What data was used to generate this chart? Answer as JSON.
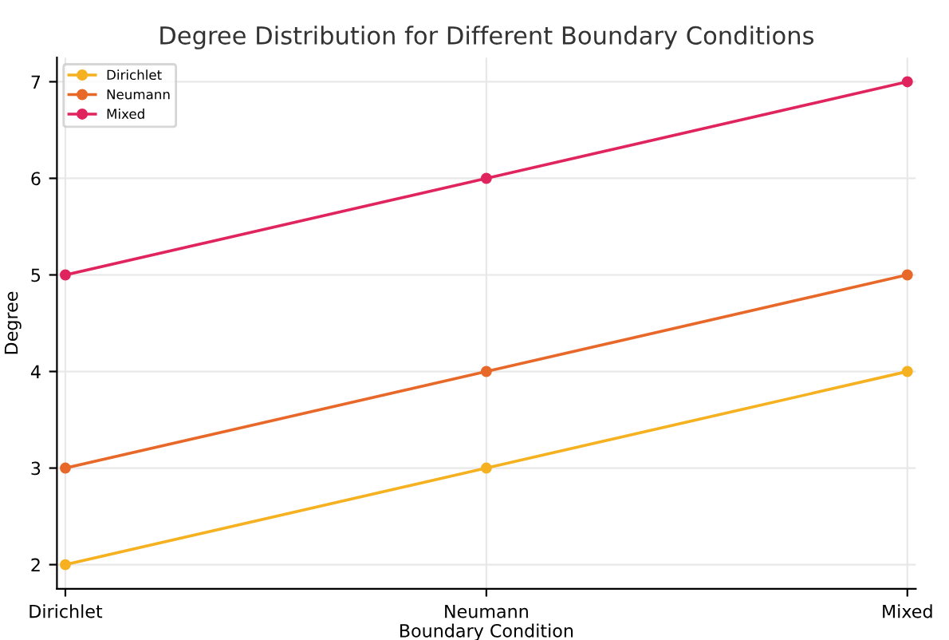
{
  "chart_data": {
    "type": "line",
    "title": "Degree Distribution for Different Boundary Conditions",
    "xlabel": "Boundary Condition",
    "ylabel": "Degree",
    "categories": [
      "Dirichlet",
      "Neumann",
      "Mixed"
    ],
    "series": [
      {
        "name": "Dirichlet",
        "color": "#f5b120",
        "values": [
          2,
          3,
          4
        ]
      },
      {
        "name": "Neumann",
        "color": "#e8682a",
        "values": [
          3,
          4,
          5
        ]
      },
      {
        "name": "Mixed",
        "color": "#e0245e",
        "values": [
          5,
          6,
          7
        ]
      }
    ],
    "ylim": [
      1.75,
      7.25
    ],
    "yticks": [
      2,
      3,
      4,
      5,
      6,
      7
    ],
    "grid": true,
    "legend": "top left",
    "marker": "circle",
    "line_style": "solid"
  }
}
